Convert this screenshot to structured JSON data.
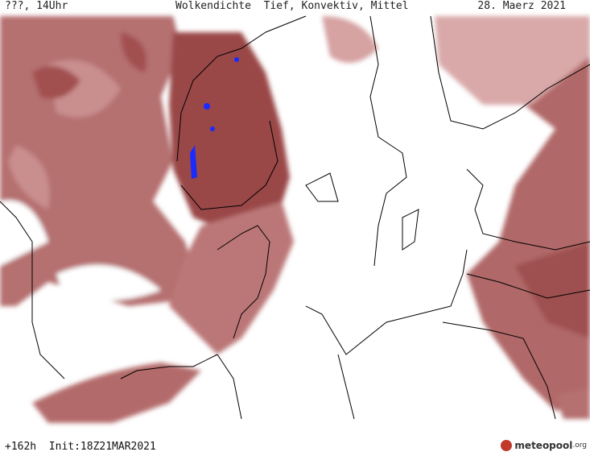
{
  "header": {
    "left": "???, 14Uhr",
    "title": "Wolkendichte  Tief, Konvektiv, Mittel",
    "date": "28. Maerz 2021"
  },
  "footer": {
    "forecast": "+162h  Init:18Z21MAR2021",
    "logo": {
      "name": "meteopool",
      "suffix": ".org"
    }
  }
}
